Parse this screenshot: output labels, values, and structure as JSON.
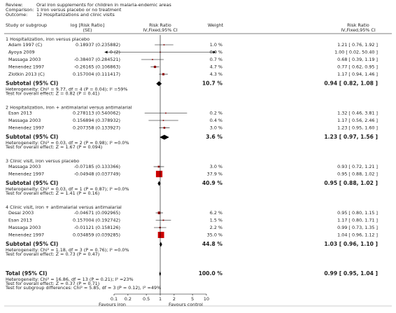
{
  "chart_data": {
    "type": "forest",
    "header": [
      [
        "Review:",
        "Oral iron supplements for children in malaria-endemic areas"
      ],
      [
        "Comparison:",
        "1 Iron versus placebo or no treatment"
      ],
      [
        "Outcome:",
        "12 Hospitalizations and clinic visits"
      ]
    ],
    "columns": {
      "study": "Study or subgroup",
      "log_rr": [
        "log [Risk Ratio]",
        "(SE)"
      ],
      "plot": [
        "Risk Ratio",
        "IV,Fixed,95% CI"
      ],
      "weight": "Weight",
      "rr": [
        "Risk Ratio",
        "IV,Fixed,95% CI"
      ]
    },
    "groups": [
      {
        "title": "1 Hospitalization, iron versus placebo",
        "studies": [
          {
            "name": "Adam 1997 (C)",
            "log_rr": "0.18937 (0.235882)",
            "weight": 1.0,
            "weight_label": "1.0 %",
            "rr": 1.21,
            "lo": 0.76,
            "hi": 1.92,
            "rr_label": "1.21 [ 0.76, 1.92 ]"
          },
          {
            "name": "Ayoya 2009",
            "log_rr": "0 (2)",
            "weight": 0.0,
            "weight_label": "0.0 %",
            "rr": 1.0,
            "lo": 0.02,
            "hi": 50.4,
            "rr_label": "1.00 [ 0.02, 50.40 ]"
          },
          {
            "name": "Massaga 2003",
            "log_rr": "-0.38407 (0.284521)",
            "weight": 0.7,
            "weight_label": "0.7 %",
            "rr": 0.68,
            "lo": 0.39,
            "hi": 1.19,
            "rr_label": "0.68 [ 0.39, 1.19 ]"
          },
          {
            "name": "Menendez 1997",
            "log_rr": "-0.26165 (0.106863)",
            "weight": 4.7,
            "weight_label": "4.7 %",
            "rr": 0.77,
            "lo": 0.62,
            "hi": 0.95,
            "rr_label": "0.77 [ 0.62, 0.95 ]"
          },
          {
            "name": "Zlotkin 2013 (C)",
            "log_rr": "0.157004 (0.111417)",
            "weight": 4.3,
            "weight_label": "4.3 %",
            "rr": 1.17,
            "lo": 0.94,
            "hi": 1.46,
            "rr_label": "1.17 [ 0.94, 1.46 ]"
          }
        ],
        "subtotal": {
          "label": "Subtotal (95% CI)",
          "weight": 10.7,
          "weight_label": "10.7 %",
          "rr": 0.94,
          "lo": 0.82,
          "hi": 1.08,
          "rr_label": "0.94 [ 0.82, 1.08 ]"
        },
        "notes": [
          "Heterogeneity: Chi² = 9.77, df = 4 (P = 0.04); I² =59%",
          "Test for overall effect: Z = 0.82 (P = 0.41)"
        ]
      },
      {
        "title": "2 Hospitalization, iron + antimalarial versus antimalarial",
        "studies": [
          {
            "name": "Esan 2013",
            "log_rr": "0.278113 (0.540062)",
            "weight": 0.2,
            "weight_label": "0.2 %",
            "rr": 1.32,
            "lo": 0.46,
            "hi": 3.81,
            "rr_label": "1.32 [ 0.46, 3.81 ]"
          },
          {
            "name": "Massaga 2003",
            "log_rr": "0.156894 (0.378932)",
            "weight": 0.4,
            "weight_label": "0.4 %",
            "rr": 1.17,
            "lo": 0.56,
            "hi": 2.46,
            "rr_label": "1.17 [ 0.56, 2.46 ]"
          },
          {
            "name": "Menendez 1997",
            "log_rr": "0.207358 (0.133927)",
            "weight": 3.0,
            "weight_label": "3.0 %",
            "rr": 1.23,
            "lo": 0.95,
            "hi": 1.6,
            "rr_label": "1.23 [ 0.95, 1.60 ]"
          }
        ],
        "subtotal": {
          "label": "Subtotal (95% CI)",
          "weight": 3.6,
          "weight_label": "3.6 %",
          "rr": 1.23,
          "lo": 0.97,
          "hi": 1.56,
          "rr_label": "1.23 [ 0.97, 1.56 ]"
        },
        "notes": [
          "Heterogeneity: Chi² = 0.03, df = 2 (P = 0.98); I² =0.0%",
          "Test for overall effect: Z = 1.67 (P = 0.094)"
        ]
      },
      {
        "title": "3 Clinic visit, iron versus placebo",
        "studies": [
          {
            "name": "Massaga 2003",
            "log_rr": "-0.07185 (0.133366)",
            "weight": 3.0,
            "weight_label": "3.0 %",
            "rr": 0.93,
            "lo": 0.72,
            "hi": 1.21,
            "rr_label": "0.93 [ 0.72, 1.21 ]"
          },
          {
            "name": "Menendez 1997",
            "log_rr": "-0.04948 (0.037749)",
            "weight": 37.9,
            "weight_label": "37.9 %",
            "rr": 0.95,
            "lo": 0.88,
            "hi": 1.02,
            "rr_label": "0.95 [ 0.88, 1.02 ]"
          }
        ],
        "subtotal": {
          "label": "Subtotal (95% CI)",
          "weight": 40.9,
          "weight_label": "40.9 %",
          "rr": 0.95,
          "lo": 0.88,
          "hi": 1.02,
          "rr_label": "0.95 [ 0.88, 1.02 ]"
        },
        "notes": [
          "Heterogeneity: Chi² = 0.03, df = 1 (P = 0.87); I² =0.0%",
          "Test for overall effect: Z = 1.41 (P = 0.16)"
        ]
      },
      {
        "title": "4 Clinic visit, iron + antimalarial versus antimalarial",
        "studies": [
          {
            "name": "Desai 2003",
            "log_rr": "-0.04671 (0.092965)",
            "weight": 6.2,
            "weight_label": "6.2 %",
            "rr": 0.95,
            "lo": 0.8,
            "hi": 1.15,
            "rr_label": "0.95 [ 0.80, 1.15 ]"
          },
          {
            "name": "Esan 2013",
            "log_rr": "0.157004 (0.192742)",
            "weight": 1.5,
            "weight_label": "1.5 %",
            "rr": 1.17,
            "lo": 0.8,
            "hi": 1.71,
            "rr_label": "1.17 [ 0.80, 1.71 ]"
          },
          {
            "name": "Massaga 2003",
            "log_rr": "-0.01121 (0.158126)",
            "weight": 2.2,
            "weight_label": "2.2 %",
            "rr": 0.99,
            "lo": 0.73,
            "hi": 1.35,
            "rr_label": "0.99 [ 0.73, 1.35 ]"
          },
          {
            "name": "Menendez 1997",
            "log_rr": "0.034859 (0.039285)",
            "weight": 35.0,
            "weight_label": "35.0 %",
            "rr": 1.04,
            "lo": 0.96,
            "hi": 1.12,
            "rr_label": "1.04 [ 0.96, 1.12 ]"
          }
        ],
        "subtotal": {
          "label": "Subtotal (95% CI)",
          "weight": 44.8,
          "weight_label": "44.8 %",
          "rr": 1.03,
          "lo": 0.96,
          "hi": 1.1,
          "rr_label": "1.03 [ 0.96, 1.10 ]"
        },
        "notes": [
          "Heterogeneity: Chi² = 1.18, df = 3 (P = 0.76); I² =0.0%",
          "Test for overall effect: Z = 0.73 (P = 0.47)"
        ]
      }
    ],
    "total": {
      "label": "Total (95% CI)",
      "weight": 100.0,
      "weight_label": "100.0 %",
      "rr": 0.99,
      "lo": 0.95,
      "hi": 1.04,
      "rr_label": "0.99 [ 0.95, 1.04 ]"
    },
    "total_notes": [
      "Heterogeneity: Chi² = 16.86, df = 13 (P = 0.21); I² =23%",
      "Test for overall effect: Z = 0.37 (P = 0.71)",
      "Test for subgroup differences: Chi² = 5.85, df = 3 (P = 0.12), I² =49%"
    ],
    "xlim": [
      0.1,
      10
    ],
    "xticks": [
      0.1,
      0.2,
      0.5,
      1,
      2,
      5,
      10
    ],
    "log_x": true,
    "xlabels": [
      "Favours iron",
      "Favours control"
    ],
    "color": "#cc0000"
  }
}
